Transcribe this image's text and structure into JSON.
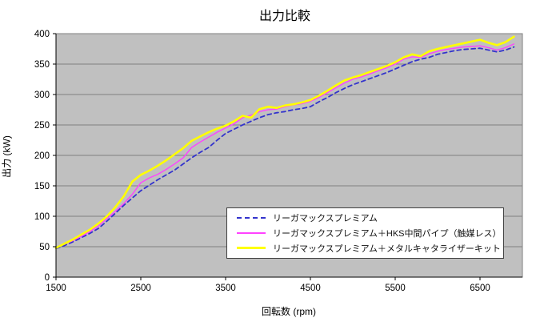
{
  "chart_data": {
    "type": "line",
    "title": "出力比較",
    "xlabel": "回転数 (rpm)",
    "ylabel": "出力 (kW)",
    "xlim": [
      1500,
      7000
    ],
    "ylim": [
      0,
      400
    ],
    "x_ticks": [
      1500,
      2500,
      3500,
      4500,
      5500,
      6500
    ],
    "y_ticks": [
      0,
      50,
      100,
      150,
      200,
      250,
      300,
      350,
      400
    ],
    "grid": "horizontal",
    "legend_position": "inside-bottom-right",
    "plot_background": "#c0c0c0",
    "gridline_color": "#808080",
    "axis_color": "#000000",
    "x": [
      1500,
      1600,
      1700,
      1800,
      1900,
      2000,
      2100,
      2200,
      2300,
      2400,
      2500,
      2600,
      2700,
      2800,
      2900,
      3000,
      3100,
      3200,
      3300,
      3400,
      3500,
      3600,
      3700,
      3800,
      3900,
      4000,
      4100,
      4200,
      4300,
      4400,
      4500,
      4600,
      4700,
      4800,
      4900,
      5000,
      5100,
      5200,
      5300,
      5400,
      5500,
      5600,
      5700,
      5800,
      5900,
      6000,
      6100,
      6200,
      6300,
      6400,
      6500,
      6600,
      6700,
      6800,
      6900
    ],
    "series": [
      {
        "name": "リーガマックスプレミアム",
        "color": "#3333cc",
        "style": "dashed",
        "width": 1.8,
        "values": [
          47,
          52,
          58,
          65,
          72,
          80,
          92,
          105,
          118,
          130,
          142,
          151,
          160,
          168,
          176,
          186,
          196,
          205,
          213,
          225,
          236,
          243,
          250,
          256,
          262,
          267,
          270,
          272,
          275,
          277,
          280,
          288,
          295,
          303,
          310,
          316,
          321,
          326,
          331,
          336,
          342,
          348,
          354,
          358,
          361,
          366,
          369,
          372,
          374,
          375,
          376,
          373,
          370,
          373,
          378
        ]
      },
      {
        "name": "リーガマックスプレミアム＋HKS中間パイプ（触媒レス）",
        "color": "#ff42ff",
        "style": "solid",
        "width": 1.4,
        "values": [
          48,
          54,
          60,
          67,
          75,
          84,
          96,
          108,
          121,
          136,
          155,
          163,
          169,
          177,
          186,
          196,
          213,
          222,
          230,
          238,
          245,
          252,
          262,
          266,
          272,
          275,
          276,
          280,
          283,
          285,
          289,
          295,
          303,
          311,
          319,
          325,
          329,
          334,
          339,
          344,
          350,
          358,
          362,
          361,
          367,
          371,
          374,
          376,
          378,
          379,
          380,
          377,
          373,
          377,
          383
        ]
      },
      {
        "name": "リーガマックスプレミアム＋メタルキャタライザーキット",
        "color": "#ffff00",
        "style": "solid",
        "width": 2.6,
        "values": [
          48,
          55,
          62,
          70,
          78,
          88,
          100,
          115,
          133,
          157,
          168,
          175,
          183,
          192,
          202,
          212,
          224,
          231,
          238,
          244,
          249,
          256,
          265,
          262,
          276,
          280,
          278,
          282,
          284,
          287,
          291,
          298,
          306,
          315,
          323,
          328,
          332,
          337,
          342,
          347,
          353,
          361,
          366,
          363,
          371,
          375,
          378,
          381,
          384,
          387,
          390,
          385,
          381,
          386,
          395
        ]
      }
    ]
  }
}
